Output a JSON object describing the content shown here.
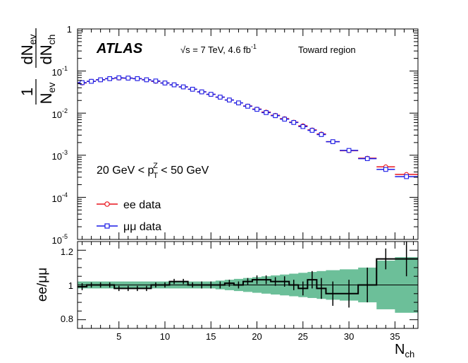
{
  "chart_data": [
    {
      "type": "scatter",
      "panel": "main",
      "xlabel": "N",
      "xlabel_sub": "ch",
      "ylabel": "1/N_ev dN_ev/dN_ch",
      "yscale": "log",
      "ylim": [
        1e-05,
        1
      ],
      "xlim": [
        0.5,
        37.5
      ],
      "legend_position": "left",
      "labels": {
        "experiment": "ATLAS",
        "energy": "√s = 7 TeV, 4.6 fb",
        "energy_sup": "-1",
        "region": "Toward region",
        "cut_lo": "20 GeV < p",
        "cut_sup": "Z",
        "cut_sub": "T",
        "cut_hi": " < 50 GeV"
      },
      "yticks": [
        {
          "base": "1",
          "exp": ""
        },
        {
          "base": "10",
          "exp": "-1"
        },
        {
          "base": "10",
          "exp": "-2"
        },
        {
          "base": "10",
          "exp": "-3"
        },
        {
          "base": "10",
          "exp": "-4"
        },
        {
          "base": "10",
          "exp": "-5"
        }
      ],
      "series": [
        {
          "name": "ee data",
          "color": "#e8141c",
          "marker": "circle",
          "bins": [
            [
              0.5,
              1.5
            ],
            [
              1.5,
              2.5
            ],
            [
              2.5,
              3.5
            ],
            [
              3.5,
              4.5
            ],
            [
              4.5,
              5.5
            ],
            [
              5.5,
              6.5
            ],
            [
              6.5,
              7.5
            ],
            [
              7.5,
              8.5
            ],
            [
              8.5,
              9.5
            ],
            [
              9.5,
              10.5
            ],
            [
              10.5,
              11.5
            ],
            [
              11.5,
              12.5
            ],
            [
              12.5,
              13.5
            ],
            [
              13.5,
              14.5
            ],
            [
              14.5,
              15.5
            ],
            [
              15.5,
              16.5
            ],
            [
              16.5,
              17.5
            ],
            [
              17.5,
              18.5
            ],
            [
              18.5,
              19.5
            ],
            [
              19.5,
              20.5
            ],
            [
              20.5,
              21.5
            ],
            [
              21.5,
              22.5
            ],
            [
              22.5,
              23.5
            ],
            [
              23.5,
              24.5
            ],
            [
              24.5,
              25.5
            ],
            [
              25.5,
              26.5
            ],
            [
              26.5,
              27.5
            ],
            [
              27.5,
              29.0
            ],
            [
              29.0,
              31.0
            ],
            [
              31.0,
              33.0
            ],
            [
              33.0,
              35.0
            ],
            [
              35.0,
              37.5
            ]
          ],
          "values": [
            0.052,
            0.057,
            0.062,
            0.066,
            0.068,
            0.068,
            0.066,
            0.062,
            0.057,
            0.052,
            0.047,
            0.042,
            0.037,
            0.032,
            0.028,
            0.024,
            0.0205,
            0.0175,
            0.0148,
            0.0125,
            0.0106,
            0.0089,
            0.0074,
            0.0061,
            0.005,
            0.004,
            0.0032,
            0.0021,
            0.00128,
            0.00085,
            0.00053,
            0.00035
          ]
        },
        {
          "name": "μμ data",
          "color": "#1a1ae6",
          "marker": "square",
          "bins": [
            [
              0.5,
              1.5
            ],
            [
              1.5,
              2.5
            ],
            [
              2.5,
              3.5
            ],
            [
              3.5,
              4.5
            ],
            [
              4.5,
              5.5
            ],
            [
              5.5,
              6.5
            ],
            [
              6.5,
              7.5
            ],
            [
              7.5,
              8.5
            ],
            [
              8.5,
              9.5
            ],
            [
              9.5,
              10.5
            ],
            [
              10.5,
              11.5
            ],
            [
              11.5,
              12.5
            ],
            [
              12.5,
              13.5
            ],
            [
              13.5,
              14.5
            ],
            [
              14.5,
              15.5
            ],
            [
              15.5,
              16.5
            ],
            [
              16.5,
              17.5
            ],
            [
              17.5,
              18.5
            ],
            [
              18.5,
              19.5
            ],
            [
              19.5,
              20.5
            ],
            [
              20.5,
              21.5
            ],
            [
              21.5,
              22.5
            ],
            [
              22.5,
              23.5
            ],
            [
              23.5,
              24.5
            ],
            [
              24.5,
              25.5
            ],
            [
              25.5,
              26.5
            ],
            [
              26.5,
              27.5
            ],
            [
              27.5,
              29.0
            ],
            [
              29.0,
              31.0
            ],
            [
              31.0,
              33.0
            ],
            [
              33.0,
              35.0
            ],
            [
              35.0,
              37.5
            ]
          ],
          "values": [
            0.053,
            0.057,
            0.062,
            0.066,
            0.069,
            0.068,
            0.066,
            0.062,
            0.058,
            0.052,
            0.047,
            0.042,
            0.037,
            0.032,
            0.028,
            0.024,
            0.0205,
            0.0175,
            0.0146,
            0.0123,
            0.0103,
            0.0087,
            0.0072,
            0.006,
            0.0048,
            0.0039,
            0.0031,
            0.0021,
            0.0013,
            0.00083,
            0.00046,
            0.00031
          ]
        }
      ]
    },
    {
      "type": "line",
      "panel": "ratio",
      "xlabel": "N",
      "xlabel_sub": "ch",
      "ylabel": "ee/μμ",
      "ylim": [
        0.75,
        1.25
      ],
      "xlim": [
        0.5,
        37.5
      ],
      "yticks": [
        "0.8",
        "1",
        "1.2"
      ],
      "xticks": [
        "5",
        "10",
        "15",
        "20",
        "25",
        "30",
        "35"
      ],
      "series": [
        {
          "name": "ratio",
          "color": "#000000",
          "bins": [
            [
              0.5,
              1.5
            ],
            [
              1.5,
              2.5
            ],
            [
              2.5,
              3.5
            ],
            [
              3.5,
              4.5
            ],
            [
              4.5,
              5.5
            ],
            [
              5.5,
              6.5
            ],
            [
              6.5,
              7.5
            ],
            [
              7.5,
              8.5
            ],
            [
              8.5,
              9.5
            ],
            [
              9.5,
              10.5
            ],
            [
              10.5,
              11.5
            ],
            [
              11.5,
              12.5
            ],
            [
              12.5,
              13.5
            ],
            [
              13.5,
              14.5
            ],
            [
              14.5,
              15.5
            ],
            [
              15.5,
              16.5
            ],
            [
              16.5,
              17.5
            ],
            [
              17.5,
              18.5
            ],
            [
              18.5,
              19.5
            ],
            [
              19.5,
              20.5
            ],
            [
              20.5,
              21.5
            ],
            [
              21.5,
              22.5
            ],
            [
              22.5,
              23.5
            ],
            [
              23.5,
              24.5
            ],
            [
              24.5,
              25.5
            ],
            [
              25.5,
              26.5
            ],
            [
              26.5,
              27.5
            ],
            [
              27.5,
              29.0
            ],
            [
              29.0,
              31.0
            ],
            [
              31.0,
              33.0
            ],
            [
              33.0,
              35.0
            ],
            [
              35.0,
              37.5
            ]
          ],
          "values": [
            0.99,
            1.0,
            1.0,
            1.0,
            0.98,
            0.98,
            0.98,
            0.98,
            1.0,
            1.0,
            1.02,
            1.02,
            1.0,
            1.0,
            1.0,
            1.0,
            1.01,
            1.0,
            1.02,
            1.03,
            1.03,
            1.02,
            1.02,
            1.0,
            0.98,
            1.03,
            0.98,
            0.95,
            0.95,
            1.0,
            1.15,
            1.15
          ],
          "errors": [
            0.02,
            0.015,
            0.015,
            0.015,
            0.015,
            0.015,
            0.015,
            0.015,
            0.015,
            0.015,
            0.015,
            0.015,
            0.015,
            0.02,
            0.02,
            0.02,
            0.02,
            0.02,
            0.02,
            0.025,
            0.025,
            0.025,
            0.03,
            0.03,
            0.04,
            0.05,
            0.06,
            0.07,
            0.08,
            0.1,
            0.06,
            0.1
          ]
        }
      ],
      "band": {
        "name": "uncertainty band",
        "color": "#6cbf99",
        "bins": [
          [
            0.5,
            1.5
          ],
          [
            1.5,
            2.5
          ],
          [
            2.5,
            3.5
          ],
          [
            3.5,
            4.5
          ],
          [
            4.5,
            5.5
          ],
          [
            5.5,
            6.5
          ],
          [
            6.5,
            7.5
          ],
          [
            7.5,
            8.5
          ],
          [
            8.5,
            9.5
          ],
          [
            9.5,
            10.5
          ],
          [
            10.5,
            11.5
          ],
          [
            11.5,
            12.5
          ],
          [
            12.5,
            13.5
          ],
          [
            13.5,
            14.5
          ],
          [
            14.5,
            15.5
          ],
          [
            15.5,
            16.5
          ],
          [
            16.5,
            17.5
          ],
          [
            17.5,
            18.5
          ],
          [
            18.5,
            19.5
          ],
          [
            19.5,
            20.5
          ],
          [
            20.5,
            21.5
          ],
          [
            21.5,
            22.5
          ],
          [
            22.5,
            23.5
          ],
          [
            23.5,
            24.5
          ],
          [
            24.5,
            25.5
          ],
          [
            25.5,
            26.5
          ],
          [
            26.5,
            27.5
          ],
          [
            27.5,
            29.0
          ],
          [
            29.0,
            31.0
          ],
          [
            31.0,
            33.0
          ],
          [
            33.0,
            35.0
          ],
          [
            35.0,
            37.5
          ]
        ],
        "half_width": [
          0.02,
          0.02,
          0.02,
          0.02,
          0.02,
          0.02,
          0.02,
          0.02,
          0.02,
          0.02,
          0.02,
          0.02,
          0.02,
          0.02,
          0.02,
          0.025,
          0.03,
          0.035,
          0.04,
          0.045,
          0.05,
          0.055,
          0.06,
          0.065,
          0.07,
          0.075,
          0.08,
          0.085,
          0.09,
          0.1,
          0.14,
          0.16
        ]
      }
    }
  ]
}
